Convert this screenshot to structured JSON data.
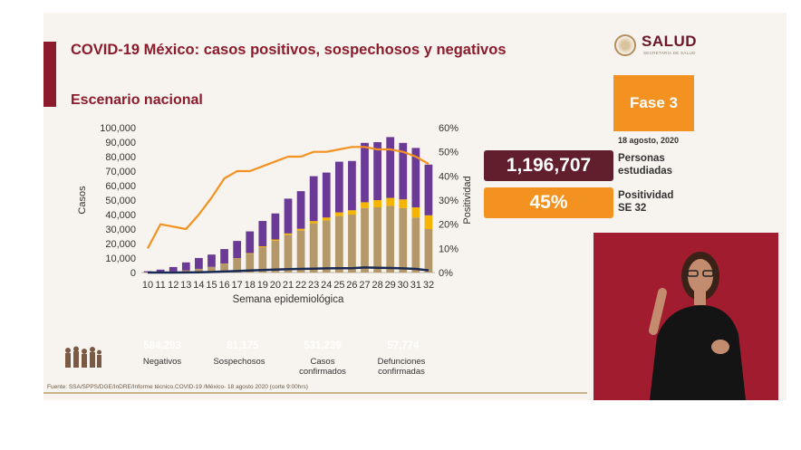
{
  "header": {
    "title": "COVID-19 México: casos positivos, sospechosos y negativos",
    "subtitle": "Escenario nacional"
  },
  "logo": {
    "name": "SALUD",
    "sub": "SECRETARÍA DE SALUD"
  },
  "phase": {
    "label": "Fase 3",
    "date": "18 agosto, 2020"
  },
  "stats": {
    "studied_value": "1,196,707",
    "studied_label_1": "Personas",
    "studied_label_2": "estudiadas",
    "positivity_value": "45%",
    "positivity_label_1": "Positividad",
    "positivity_label_2": "SE 32"
  },
  "legend": [
    {
      "value": "584,293",
      "caption": "Negativos",
      "color": "#6a3a96"
    },
    {
      "value": "81,175",
      "caption": "Sospechosos",
      "color": "#f5b400"
    },
    {
      "value": "531,239",
      "caption": "Casos\nconfirmados",
      "color": "#b4986a"
    },
    {
      "value": "57,774",
      "caption": "Defunciones\nconfirmadas",
      "color": "#1a2a52"
    }
  ],
  "source": "Fuente: SSA/SPPS/DGE/InDRE/Informe técnico.COVID-19 /México- 18 agosto 2020 (corte 9:00hrs)",
  "chart_data": {
    "type": "bar",
    "xlabel": "Semana epidemiológica",
    "ylabel": "Casos",
    "y2label": "Positividad",
    "ylim": [
      0,
      100000
    ],
    "y2lim": [
      0,
      60
    ],
    "yticks": [
      "0",
      "10,000",
      "20,000",
      "30,000",
      "40,000",
      "50,000",
      "60,000",
      "70,000",
      "80,000",
      "90,000",
      "100,000"
    ],
    "y2ticks": [
      "0%",
      "10%",
      "20%",
      "30%",
      "40%",
      "50%",
      "60%"
    ],
    "categories": [
      "10",
      "11",
      "12",
      "13",
      "14",
      "15",
      "16",
      "17",
      "18",
      "19",
      "20",
      "21",
      "22",
      "23",
      "24",
      "25",
      "26",
      "27",
      "28",
      "29",
      "30",
      "31",
      "32"
    ],
    "series": [
      {
        "name": "Casos confirmados",
        "kind": "stack",
        "color": "#b4986a",
        "values": [
          100,
          300,
          800,
          1500,
          2500,
          3800,
          6000,
          9500,
          13000,
          17500,
          22000,
          26000,
          29000,
          34000,
          36000,
          39000,
          40000,
          44500,
          45000,
          46000,
          44500,
          38000,
          30000
        ]
      },
      {
        "name": "Sospechosos",
        "kind": "stack",
        "color": "#f5b400",
        "values": [
          0,
          0,
          0,
          0,
          50,
          100,
          200,
          300,
          400,
          600,
          800,
          1000,
          1200,
          1500,
          2000,
          2500,
          3000,
          4000,
          5000,
          5500,
          6000,
          7000,
          9500
        ]
      },
      {
        "name": "Negativos",
        "kind": "stack",
        "color": "#6a3a96",
        "values": [
          800,
          1700,
          3000,
          5500,
          7500,
          8500,
          10000,
          12000,
          15000,
          17500,
          18000,
          24000,
          26000,
          31000,
          31000,
          35000,
          34000,
          41000,
          40000,
          42000,
          39000,
          41000,
          35000
        ]
      },
      {
        "name": "Defunciones confirmadas",
        "kind": "line",
        "axis": "left",
        "color": "#1a2a52",
        "values": [
          0,
          10,
          30,
          80,
          200,
          400,
          700,
          1000,
          1400,
          1700,
          2000,
          2300,
          2500,
          2700,
          2900,
          3000,
          3000,
          3500,
          3300,
          3100,
          2900,
          2500,
          1500
        ]
      },
      {
        "name": "Positividad",
        "kind": "line",
        "axis": "right",
        "color": "#f39220",
        "values": [
          10,
          20,
          19,
          18,
          24,
          31,
          39,
          42,
          42,
          44,
          46,
          48,
          48,
          50,
          50,
          51,
          52,
          52,
          51,
          51,
          50,
          48,
          45
        ]
      }
    ]
  }
}
